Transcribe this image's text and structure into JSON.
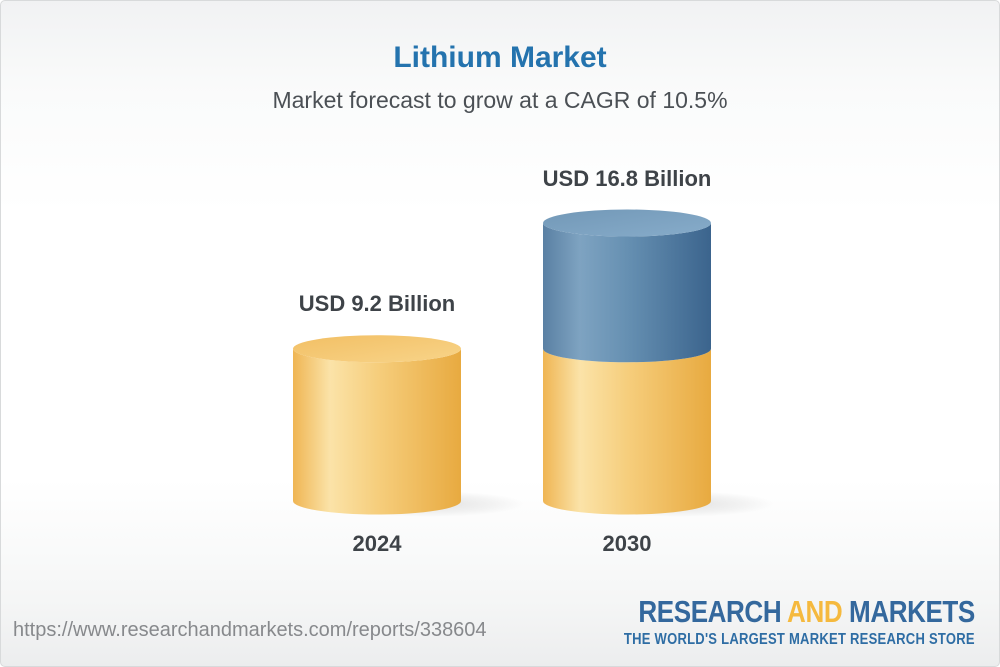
{
  "header": {
    "title": "Lithium Market",
    "subtitle": "Market forecast to grow at a CAGR of 10.5%"
  },
  "chart_data": {
    "type": "bar",
    "variant": "3d-stacked-cylinders",
    "title": "Lithium Market",
    "subtitle": "Market forecast to grow at a CAGR of 10.5%",
    "cagr_percent": 10.5,
    "unit": "USD Billion",
    "categories": [
      "2024",
      "2030"
    ],
    "values": [
      9.2,
      16.8
    ],
    "value_labels": [
      "USD 9.2 Billion",
      "USD 16.8 Billion"
    ],
    "stacking_note": "2030 cylinder shows base segment equal to 2024 value in gold, growth segment above it in blue",
    "ylim": [
      0,
      16.8
    ],
    "grid": false,
    "legend": false,
    "colors": {
      "base_segment_gold": "#F2C369",
      "growth_segment_blue": "#5B88AC",
      "label_text": "#3E4348",
      "title_blue": "#2473AE",
      "subtitle_gray": "#4B5055"
    }
  },
  "footer": {
    "url": "https://www.researchandmarkets.com/reports/338604",
    "logo": {
      "research": "RESEARCH",
      "and": "AND",
      "markets": "MARKETS",
      "tagline": "THE WORLD'S LARGEST MARKET RESEARCH STORE",
      "blue": "#34689D",
      "gold": "#F5B93E"
    }
  }
}
